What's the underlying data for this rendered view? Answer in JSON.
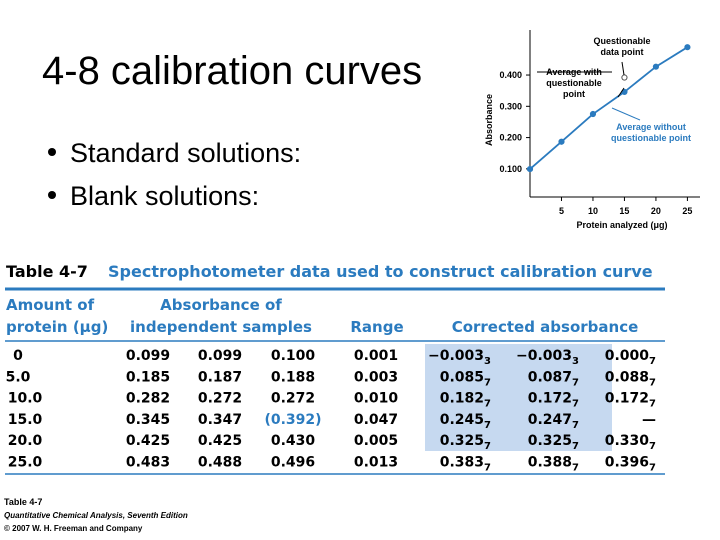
{
  "slide": {
    "title": "4-8 calibration curves",
    "bullets": [
      "Standard solutions:",
      "Blank solutions:"
    ]
  },
  "chart_data": {
    "type": "line",
    "ylabel": "Absorbance",
    "xlabel": "Protein analyzed (μg)",
    "x": [
      0,
      5,
      10,
      15,
      20,
      25
    ],
    "series": [
      {
        "color": "#2b7bbf",
        "values": [
          0.0993,
          0.1867,
          0.2753,
          0.346,
          0.4267,
          0.489
        ]
      },
      {
        "color": "#555555",
        "values": [
          null,
          null,
          null,
          0.392,
          null,
          null
        ]
      }
    ],
    "xlim": [
      0,
      27
    ],
    "ylim": [
      0.01,
      0.544
    ],
    "xticks": [
      5,
      10,
      15,
      20,
      25
    ],
    "yticks": [
      {
        "value": 0.1,
        "label": "0.100"
      },
      {
        "value": 0.2,
        "label": "0.200"
      },
      {
        "value": 0.3,
        "label": "0.300"
      },
      {
        "value": 0.4,
        "label": "0.400"
      }
    ],
    "annotations": [
      [
        "Questionable",
        "data point"
      ],
      [
        "Average with",
        "questionable",
        "point"
      ],
      [
        "Average without",
        "questionable point"
      ]
    ]
  },
  "table": {
    "label": "Table 4-7",
    "caption": "Spectrophotometer data used to construct calibration curve",
    "columns": [
      [
        "Amount of",
        "protein (μg)"
      ],
      [
        "Absorbance of",
        "independent samples"
      ],
      [
        "Range"
      ],
      [
        "Corrected absorbance"
      ]
    ],
    "rows": [
      [
        "0",
        "0.099",
        "0.099",
        "0.100",
        "0.001",
        {
          "main": "−0.003",
          "sub": "3"
        },
        {
          "main": "−0.003",
          "sub": "3"
        },
        {
          "main": "0.000",
          "sub": "7"
        }
      ],
      [
        "5.0",
        "0.185",
        "0.187",
        "0.188",
        "0.003",
        {
          "main": "0.085",
          "sub": "7"
        },
        {
          "main": "0.087",
          "sub": "7"
        },
        {
          "main": "0.088",
          "sub": "7"
        }
      ],
      [
        "10.0",
        "0.282",
        "0.272",
        "0.272",
        "0.010",
        {
          "main": "0.182",
          "sub": "7"
        },
        {
          "main": "0.172",
          "sub": "7"
        },
        {
          "main": "0.172",
          "sub": "7"
        }
      ],
      [
        "15.0",
        "0.345",
        "0.347",
        "(0.392)",
        "0.047",
        {
          "main": "0.245",
          "sub": "7"
        },
        {
          "main": "0.247",
          "sub": "7"
        },
        "—"
      ],
      [
        "20.0",
        "0.425",
        "0.425",
        "0.430",
        "0.005",
        {
          "main": "0.325",
          "sub": "7"
        },
        {
          "main": "0.325",
          "sub": "7"
        },
        {
          "main": "0.330",
          "sub": "7"
        }
      ],
      [
        "25.0",
        "0.483",
        "0.488",
        "0.496",
        "0.013",
        {
          "main": "0.383",
          "sub": "7"
        },
        {
          "main": "0.388",
          "sub": "7"
        },
        {
          "main": "0.396",
          "sub": "7"
        }
      ]
    ],
    "footnote": [
      "Table 4-7",
      "Quantitative Chemical Analysis, Seventh Edition",
      "© 2007 W. H. Freeman and Company"
    ]
  }
}
